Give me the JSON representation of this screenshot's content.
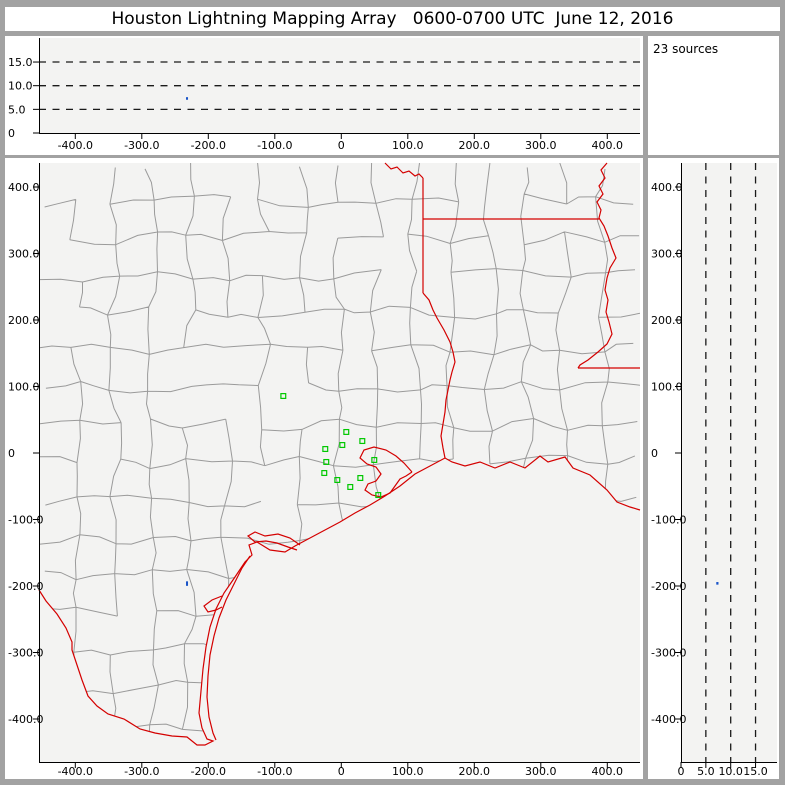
{
  "title": "Houston Lightning Mapping Array   0600-0700 UTC  June 12, 2016",
  "sources_label": "23 sources",
  "sources_count": 23,
  "colors": {
    "window_background": "#a2a2a2",
    "panel_background": "#ffffff",
    "plot_background": "#f3f3f2",
    "axis": "#000000",
    "gridline": "#1a1a1a",
    "county_line": "#9a9a9a",
    "state_border": "#d40000",
    "station_marker": "#00c800",
    "source_marker": "#1853c8"
  },
  "chart_data": [
    {
      "id": "altitude-vs-eastwest",
      "type": "scatter",
      "title": "",
      "xlabel": "",
      "ylabel": "",
      "xlim": [
        -455,
        450
      ],
      "ylim": [
        0,
        20
      ],
      "grid": "dashed-horizontal",
      "gridlines_y": [
        5,
        10,
        15
      ],
      "xticks": {
        "values": [
          -400,
          -300,
          -200,
          -100,
          0,
          100,
          200,
          300,
          400
        ],
        "labels": [
          "-400.0",
          "-300.0",
          "-200.0",
          "-100.0",
          "0",
          "100.0",
          "200.0",
          "300.0",
          "400.0"
        ]
      },
      "yticks": {
        "values": [
          0,
          5,
          10,
          15
        ],
        "labels": [
          "0",
          "5.0",
          "10.0",
          "15.0"
        ]
      },
      "points": [
        {
          "x": -232,
          "y": 7.3
        }
      ]
    },
    {
      "id": "plan-view-map",
      "type": "scatter",
      "title": "",
      "xlabel": "",
      "ylabel": "",
      "xlim": [
        -455,
        450
      ],
      "ylim": [
        -465,
        437
      ],
      "grid": "off",
      "xticks": {
        "values": [
          -400,
          -300,
          -200,
          -100,
          0,
          100,
          200,
          300,
          400
        ],
        "labels": [
          "-400.0",
          "-300.0",
          "-200.0",
          "-100.0",
          "0",
          "100.0",
          "200.0",
          "300.0",
          "400.0"
        ]
      },
      "yticks": {
        "values": [
          400,
          300,
          200,
          100,
          0,
          -100,
          -200,
          -300,
          -400
        ],
        "labels": [
          "400.0",
          "300.0",
          "200.0",
          "100.0",
          "0",
          "-100.0",
          "-200.0",
          "-300.0",
          "-400.0"
        ]
      },
      "stations_km": [
        [
          -87.2,
          85.7
        ],
        [
          7.5,
          31.6
        ],
        [
          31.6,
          18.0
        ],
        [
          1.5,
          12.0
        ],
        [
          -24.1,
          6.0
        ],
        [
          49.6,
          -10.5
        ],
        [
          -22.6,
          -13.5
        ],
        [
          -25.6,
          -30.1
        ],
        [
          28.6,
          -37.6
        ],
        [
          -6.0,
          -40.6
        ],
        [
          13.5,
          -51.1
        ],
        [
          55.6,
          -63.2
        ]
      ],
      "sources_km": [
        [
          -232,
          -196
        ]
      ]
    },
    {
      "id": "altitude-vs-northsouth",
      "type": "scatter",
      "title": "",
      "xlabel": "",
      "ylabel": "",
      "xlim": [
        0,
        19.3
      ],
      "ylim": [
        -465,
        437
      ],
      "grid": "dashed-vertical",
      "gridlines_x": [
        5,
        10,
        15
      ],
      "xticks": {
        "values": [
          0,
          5,
          10,
          15
        ],
        "labels": [
          "0",
          "5.0",
          "10.0",
          "15.0"
        ]
      },
      "yticks": {
        "values": [
          400,
          300,
          200,
          100,
          0,
          -100,
          -200,
          -300,
          -400
        ],
        "labels": [
          "400.0",
          "300.0",
          "200.0",
          "100.0",
          "0",
          "-100.0",
          "-200.0",
          "-300.0",
          "-400.0"
        ]
      },
      "points": [
        {
          "x": 7.3,
          "y": -196
        }
      ]
    }
  ],
  "map_geometry": {
    "land_outline": [
      [
        0,
        0
      ],
      [
        601,
        0
      ],
      [
        601,
        347
      ],
      [
        591,
        344
      ],
      [
        578,
        339
      ],
      [
        568,
        327
      ],
      [
        551,
        312
      ],
      [
        534,
        305
      ],
      [
        526,
        294
      ],
      [
        509,
        299
      ],
      [
        501,
        293
      ],
      [
        486,
        305
      ],
      [
        471,
        299
      ],
      [
        456,
        305
      ],
      [
        441,
        299
      ],
      [
        426,
        303
      ],
      [
        413,
        299
      ],
      [
        406,
        295
      ],
      [
        391,
        303
      ],
      [
        376,
        311
      ],
      [
        361,
        323
      ],
      [
        346,
        333
      ],
      [
        331,
        342
      ],
      [
        316,
        350
      ],
      [
        301,
        359
      ],
      [
        286,
        367
      ],
      [
        271,
        375
      ],
      [
        256,
        383
      ],
      [
        246,
        389
      ],
      [
        231,
        387
      ],
      [
        218,
        379
      ],
      [
        210,
        382
      ],
      [
        213,
        392
      ],
      [
        206,
        399
      ],
      [
        196,
        414
      ],
      [
        185,
        430
      ],
      [
        177,
        446
      ],
      [
        171,
        464
      ],
      [
        167,
        484
      ],
      [
        164,
        506
      ],
      [
        162,
        528
      ],
      [
        160,
        550
      ],
      [
        163,
        565
      ],
      [
        168,
        576
      ],
      [
        174,
        578
      ],
      [
        166,
        582
      ],
      [
        158,
        582
      ],
      [
        148,
        574
      ],
      [
        133,
        573
      ],
      [
        116,
        570
      ],
      [
        101,
        566
      ],
      [
        85,
        556
      ],
      [
        69,
        551
      ],
      [
        58,
        543
      ],
      [
        49,
        533
      ],
      [
        43,
        517
      ],
      [
        37,
        499
      ],
      [
        33,
        487
      ],
      [
        33,
        479
      ],
      [
        27,
        465
      ],
      [
        18,
        451
      ],
      [
        7,
        438
      ],
      [
        0,
        427
      ]
    ],
    "borders": {
      "red-river-border": [
        [
          346,
          0
        ],
        [
          352,
          6
        ],
        [
          358,
          4
        ],
        [
          364,
          10
        ],
        [
          370,
          8
        ],
        [
          376,
          13
        ],
        [
          380,
          11
        ],
        [
          384,
          15
        ]
      ],
      "texas-arkansas-border": [
        [
          384,
          15
        ],
        [
          384,
          130
        ]
      ],
      "arkansas-louisiana-border": [
        [
          384,
          56
        ],
        [
          560,
          56
        ]
      ],
      "sabine-river-border": [
        [
          384,
          130
        ],
        [
          390,
          137
        ],
        [
          394,
          147
        ],
        [
          398,
          155
        ],
        [
          405,
          167
        ],
        [
          411,
          179
        ],
        [
          414,
          189
        ],
        [
          416,
          199
        ],
        [
          413,
          209
        ],
        [
          411,
          217
        ],
        [
          409,
          227
        ],
        [
          407,
          237
        ],
        [
          406,
          249
        ],
        [
          404,
          261
        ],
        [
          402,
          273
        ],
        [
          404,
          285
        ],
        [
          406,
          295
        ]
      ],
      "mississippi-river-border": [
        [
          568,
          0
        ],
        [
          562,
          7
        ],
        [
          566,
          15
        ],
        [
          560,
          23
        ],
        [
          564,
          31
        ],
        [
          558,
          39
        ],
        [
          562,
          47
        ],
        [
          560,
          55
        ],
        [
          565,
          63
        ],
        [
          569,
          73
        ],
        [
          573,
          85
        ],
        [
          577,
          95
        ],
        [
          571,
          105
        ],
        [
          568,
          115
        ],
        [
          566,
          127
        ],
        [
          569,
          137
        ],
        [
          567,
          149
        ],
        [
          570,
          159
        ],
        [
          573,
          171
        ],
        [
          568,
          181
        ],
        [
          559,
          189
        ],
        [
          549,
          197
        ],
        [
          541,
          202
        ],
        [
          539,
          205
        ]
      ],
      "louisiana-mississippi-31n-border": [
        [
          539,
          205
        ],
        [
          601,
          205
        ]
      ],
      "galveston-bay-shore": [
        [
          373,
          309
        ],
        [
          365,
          300
        ],
        [
          357,
          293
        ],
        [
          347,
          287
        ],
        [
          335,
          284
        ],
        [
          325,
          287
        ],
        [
          321,
          295
        ],
        [
          328,
          301
        ],
        [
          337,
          304
        ],
        [
          342,
          311
        ],
        [
          337,
          318
        ],
        [
          329,
          321
        ],
        [
          326,
          327
        ],
        [
          333,
          332
        ],
        [
          342,
          334
        ],
        [
          351,
          330
        ],
        [
          356,
          323
        ],
        [
          361,
          316
        ],
        [
          367,
          313
        ],
        [
          373,
          309
        ]
      ],
      "matagorda-bay-shore": [
        [
          261,
          382
        ],
        [
          251,
          375
        ],
        [
          239,
          371
        ],
        [
          226,
          373
        ],
        [
          216,
          369
        ],
        [
          209,
          373
        ],
        [
          216,
          379
        ],
        [
          227,
          378
        ],
        [
          238,
          380
        ],
        [
          249,
          384
        ],
        [
          258,
          387
        ]
      ],
      "corpus-christi-bay-shore": [
        [
          183,
          433
        ],
        [
          173,
          437
        ],
        [
          165,
          443
        ],
        [
          169,
          449
        ],
        [
          177,
          447
        ],
        [
          183,
          444
        ]
      ],
      "padre-island-shore": [
        [
          211,
          393
        ],
        [
          203,
          405
        ],
        [
          195,
          421
        ],
        [
          187,
          437
        ],
        [
          180,
          455
        ],
        [
          175,
          473
        ],
        [
          171,
          492
        ],
        [
          169,
          513
        ],
        [
          168,
          534
        ],
        [
          170,
          554
        ],
        [
          174,
          570
        ],
        [
          177,
          577
        ]
      ]
    },
    "county_grid": {
      "cells_x": 16,
      "cells_y": 16,
      "seed": 1234,
      "jitter": 14,
      "skip_probability": 0.15
    }
  }
}
